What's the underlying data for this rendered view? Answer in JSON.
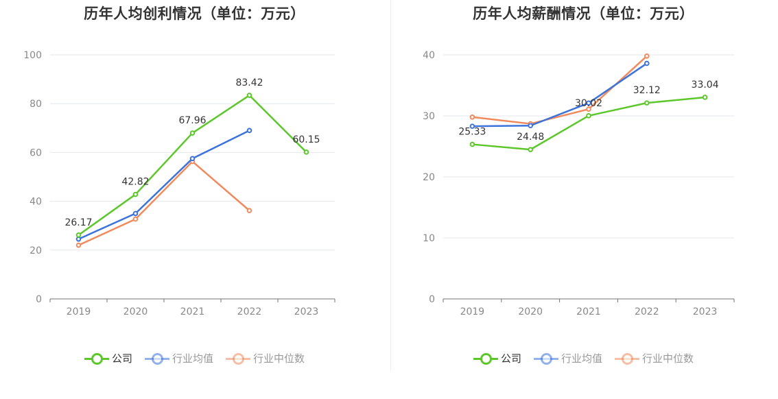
{
  "chart_data": [
    {
      "type": "line",
      "title": "历年人均创利情况（单位：万元）",
      "categories": [
        "2019",
        "2020",
        "2021",
        "2022",
        "2023"
      ],
      "ylim": [
        0,
        100
      ],
      "yticks": [
        0,
        20,
        40,
        60,
        80,
        100
      ],
      "grid": true,
      "legend_position": "bottom",
      "series": [
        {
          "name": "公司",
          "color": "#5cc72a",
          "values": [
            26.17,
            42.82,
            67.96,
            83.42,
            60.15
          ],
          "labels": [
            "26.17",
            "42.82",
            "67.96",
            "83.42",
            "60.15"
          ]
        },
        {
          "name": "行业均值",
          "color": "#3b73db",
          "values": [
            24.5,
            35.0,
            57.5,
            69.0,
            null
          ]
        },
        {
          "name": "行业中位数",
          "color": "#f08a5d",
          "values": [
            22.0,
            32.7,
            56.3,
            36.2,
            null
          ]
        }
      ]
    },
    {
      "type": "line",
      "title": "历年人均薪酬情况（单位：万元）",
      "categories": [
        "2019",
        "2020",
        "2021",
        "2022",
        "2023"
      ],
      "ylim": [
        0,
        40
      ],
      "yticks": [
        0,
        10,
        20,
        30,
        40
      ],
      "grid": true,
      "legend_position": "bottom",
      "series": [
        {
          "name": "公司",
          "color": "#5cc72a",
          "values": [
            25.33,
            24.48,
            30.02,
            32.12,
            33.04
          ],
          "labels": [
            "25.33",
            "24.48",
            "30.02",
            "32.12",
            "33.04"
          ]
        },
        {
          "name": "行业均值",
          "color": "#3b73db",
          "values": [
            28.3,
            28.4,
            32.1,
            38.6,
            null
          ]
        },
        {
          "name": "行业中位数",
          "color": "#f08a5d",
          "values": [
            29.8,
            28.7,
            31.1,
            39.8,
            null
          ]
        }
      ]
    }
  ]
}
